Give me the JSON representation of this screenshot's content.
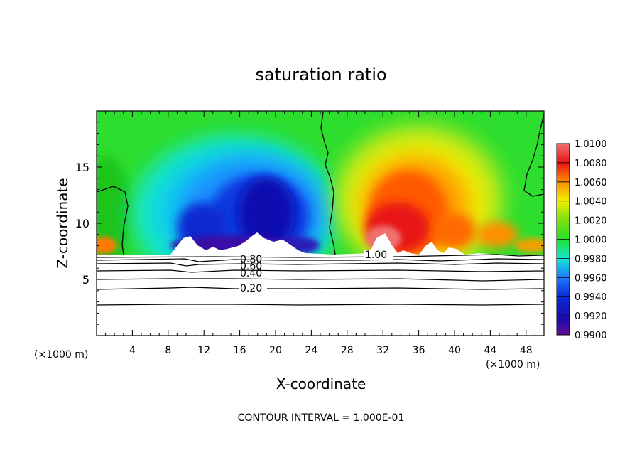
{
  "chart_data": {
    "type": "heatmap",
    "title": "saturation ratio",
    "xlabel": "X-coordinate",
    "ylabel": "Z-coordinate",
    "x_unit": "(×1000 m)",
    "footer": "CONTOUR INTERVAL = 1.000E-01",
    "xlim": [
      0,
      50
    ],
    "ylim": [
      0,
      20
    ],
    "x_ticks": [
      4,
      8,
      12,
      16,
      20,
      24,
      28,
      32,
      36,
      40,
      44,
      48
    ],
    "y_ticks": [
      5,
      10,
      15
    ],
    "colorbar": {
      "min": 0.99,
      "max": 1.01,
      "labels": [
        "1.0100",
        "1.0080",
        "1.0060",
        "1.0040",
        "1.0020",
        "1.0000",
        "0.9980",
        "0.9960",
        "0.9940",
        "0.9920",
        "0.9900"
      ]
    },
    "contour_labels": [
      {
        "text": "1.00",
        "x": 31.2,
        "z": 7.3
      },
      {
        "text": "0.80",
        "x": 17.6,
        "z": 6.8
      },
      {
        "text": "0.60",
        "x": 17.6,
        "z": 6.3
      },
      {
        "text": "0.40",
        "x": 17.6,
        "z": 5.6
      },
      {
        "text": "0.20",
        "x": 17.6,
        "z": 4.3
      }
    ],
    "low_level_contour_heights": [
      7.0,
      6.7,
      6.3,
      5.7,
      5.0,
      4.2,
      2.8
    ],
    "colors": {
      "purple": "#6a0a9a",
      "dark_blue": "#0a0ab0",
      "blue": "#1e5aff",
      "cyan": "#14e6d2",
      "green": "#22e02a",
      "yellow": "#f0f000",
      "orange": "#ff8c00",
      "red": "#e81414",
      "pink": "#f07070"
    }
  }
}
